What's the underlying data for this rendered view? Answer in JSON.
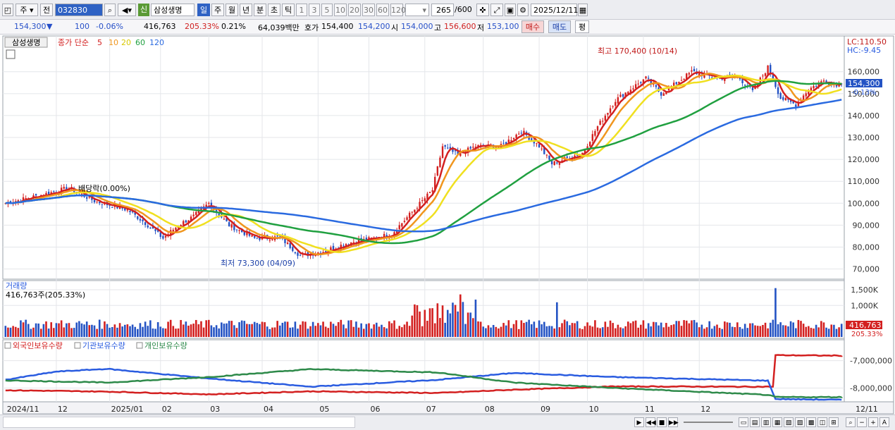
{
  "toolbar": {
    "market": "주",
    "prev": "전",
    "code": "032830",
    "shin_badge": "신",
    "stock_name": "삼성생명",
    "periods": [
      "일",
      "주",
      "월",
      "년",
      "분",
      "초",
      "틱"
    ],
    "period_selected": "일",
    "intervals": [
      "1",
      "3",
      "5",
      "10",
      "20",
      "30",
      "60",
      "120"
    ],
    "count_value": "265",
    "count_total": "/600",
    "date": "2025/12/11"
  },
  "quote": {
    "price": "154,300",
    "change_arrow": "▼",
    "change": "100",
    "change_pct": "-0.06%",
    "volume": "416,763",
    "volume_ratio": "205.33%",
    "turnover": "0.21%",
    "amount": "64,039백만",
    "bid_label": "호가",
    "bid": "154,400",
    "ask": "154,200",
    "open_label": "시",
    "open": "154,000",
    "high_label": "고",
    "high": "156,600",
    "low_label": "저",
    "low": "153,100",
    "buy_btn": "매수",
    "sell_btn": "매도",
    "eval_btn": "평"
  },
  "legend": {
    "name": "삼성생명",
    "close_label": "종가 단순",
    "ma_labels": [
      "5",
      "10",
      "20",
      "60",
      "120"
    ],
    "ma_colors": [
      "#d32020",
      "#f0961e",
      "#f0e020",
      "#20a040",
      "#2a6ae0"
    ]
  },
  "annotations": {
    "high": "최고 170,400 (10/14)",
    "low": "최저 73,300 (04/09)",
    "dividend": "배당락(0.00%)",
    "lc": "LC:110.50",
    "hc": "HC:-9.45",
    "price_tag": "154,300",
    "pct_tag": "-0.13%"
  },
  "volume_panel": {
    "title": "거래량",
    "value": "416,763주(205.33%)",
    "tag1": "416,763",
    "tag2": "205.33%"
  },
  "holding_panel": {
    "items": [
      "외국인보유수량",
      "기관보유수량",
      "개인보유수량"
    ],
    "colors": [
      "#d32020",
      "#2a5ce0",
      "#2e8a4a"
    ]
  },
  "chart_data": {
    "type": "line",
    "price_axis": {
      "ticks": [
        70000,
        80000,
        90000,
        100000,
        110000,
        120000,
        130000,
        140000,
        150000,
        160000
      ],
      "labels": [
        "70,000",
        "80,000",
        "90,000",
        "100,000",
        "110,000",
        "120,000",
        "130,000",
        "140,000",
        "150,000",
        "160,000"
      ],
      "ylim": [
        66000,
        176000
      ]
    },
    "volume_axis": {
      "ticks": [
        1000000,
        1500000
      ],
      "labels": [
        "1,000K",
        "1,500K"
      ],
      "ylim": [
        0,
        1700000
      ]
    },
    "holding_axis": {
      "ticks": [
        -7000000,
        -8000000
      ],
      "labels": [
        "-7,000,000",
        "-8,000,000"
      ]
    },
    "x_labels": [
      "2024/11",
      "12",
      "2025/01",
      "02",
      "03",
      "04",
      "05",
      "06",
      "07",
      "08",
      "09",
      "10",
      "11",
      "12",
      "12/11"
    ],
    "close_keypoints": [
      [
        0,
        100000
      ],
      [
        15,
        104000
      ],
      [
        25,
        107000
      ],
      [
        35,
        101000
      ],
      [
        48,
        97000
      ],
      [
        55,
        91000
      ],
      [
        62,
        84000
      ],
      [
        68,
        90000
      ],
      [
        74,
        94000
      ],
      [
        80,
        100000
      ],
      [
        88,
        90000
      ],
      [
        98,
        84000
      ],
      [
        108,
        84500
      ],
      [
        116,
        76000
      ],
      [
        125,
        78000
      ],
      [
        135,
        82000
      ],
      [
        145,
        84000
      ],
      [
        152,
        86000
      ],
      [
        160,
        96000
      ],
      [
        168,
        106000
      ],
      [
        172,
        126000
      ],
      [
        178,
        122000
      ],
      [
        185,
        126000
      ],
      [
        195,
        126000
      ],
      [
        203,
        133000
      ],
      [
        210,
        126000
      ],
      [
        215,
        118000
      ],
      [
        222,
        121000
      ],
      [
        227,
        123000
      ],
      [
        233,
        135000
      ],
      [
        240,
        147000
      ],
      [
        247,
        153000
      ],
      [
        252,
        157000
      ],
      [
        258,
        150000
      ],
      [
        263,
        154000
      ],
      [
        270,
        160000
      ],
      [
        280,
        157000
      ],
      [
        288,
        158000
      ],
      [
        294,
        151000
      ],
      [
        300,
        162000
      ],
      [
        305,
        148000
      ],
      [
        311,
        145000
      ],
      [
        316,
        152000
      ],
      [
        322,
        156000
      ],
      [
        326,
        154300
      ]
    ],
    "ma_series": [
      {
        "name": "5",
        "color": "#d32020",
        "period": 5
      },
      {
        "name": "10",
        "color": "#f0961e",
        "period": 10
      },
      {
        "name": "20",
        "color": "#f0e020",
        "period": 20
      },
      {
        "name": "60",
        "color": "#20a040",
        "period": 60
      },
      {
        "name": "120",
        "color": "#2a6ae0",
        "period": 120
      }
    ],
    "extremes": {
      "high": 170400,
      "low": 73300
    },
    "holding_series": [
      {
        "name": "외국인보유수량",
        "color": "#d32020",
        "points": [
          [
            0,
            -8080000
          ],
          [
            40,
            -8130000
          ],
          [
            80,
            -8230000
          ],
          [
            120,
            -8120000
          ],
          [
            170,
            -8180000
          ],
          [
            200,
            -8060000
          ],
          [
            240,
            -7940000
          ],
          [
            290,
            -7950000
          ],
          [
            302,
            -7950000
          ],
          [
            303,
            -6800000
          ],
          [
            330,
            -6820000
          ]
        ]
      },
      {
        "name": "기관보유수량",
        "color": "#2a5ce0",
        "points": [
          [
            0,
            -7700000
          ],
          [
            20,
            -7400000
          ],
          [
            40,
            -7300000
          ],
          [
            80,
            -7650000
          ],
          [
            120,
            -7950000
          ],
          [
            170,
            -7700000
          ],
          [
            200,
            -7450000
          ],
          [
            240,
            -7600000
          ],
          [
            300,
            -7730000
          ],
          [
            303,
            -8400000
          ],
          [
            330,
            -8430000
          ]
        ]
      },
      {
        "name": "개인보유수량",
        "color": "#2e8a4a",
        "points": [
          [
            0,
            -7720000
          ],
          [
            40,
            -7800000
          ],
          [
            80,
            -7600000
          ],
          [
            120,
            -7310000
          ],
          [
            170,
            -7430000
          ],
          [
            200,
            -7800000
          ],
          [
            240,
            -8000000
          ],
          [
            300,
            -8250000
          ],
          [
            303,
            -8330000
          ],
          [
            330,
            -8330000
          ]
        ]
      }
    ]
  }
}
